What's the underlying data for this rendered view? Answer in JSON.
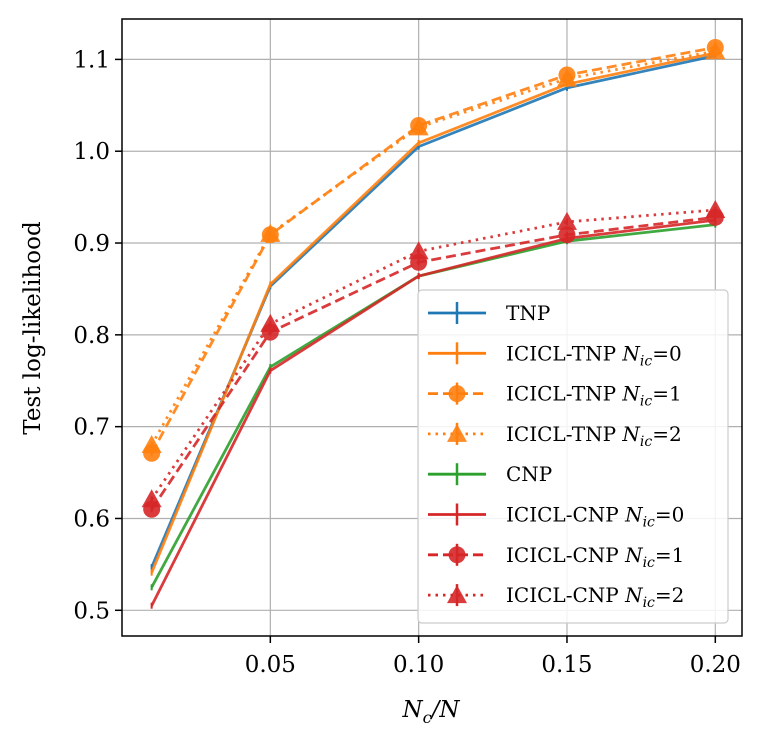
{
  "chart_data": {
    "type": "line",
    "title": "",
    "xlabel_main": "N",
    "xlabel_sub": "c",
    "xlabel_tail": "/N",
    "ylabel": "Test log-likelihood",
    "xlim": [
      0.0,
      0.209
    ],
    "ylim": [
      0.472,
      1.144
    ],
    "xticks": [
      0.05,
      0.1,
      0.15,
      0.2
    ],
    "xtick_labels": [
      "0.05",
      "0.10",
      "0.15",
      "0.20"
    ],
    "yticks": [
      0.5,
      0.6,
      0.7,
      0.8,
      0.9,
      1.0,
      1.1
    ],
    "ytick_labels": [
      "0.5",
      "0.6",
      "0.7",
      "0.8",
      "0.9",
      "1.0",
      "1.1"
    ],
    "grid": true,
    "legend_position": "bottom-right",
    "x": [
      0.01,
      0.05,
      0.1,
      0.15,
      0.2
    ],
    "series": [
      {
        "name": "TNP",
        "label_main": "TNP",
        "label_var": "",
        "label_sub": "",
        "label_tail": "",
        "color": "#1f77b4",
        "dash": "solid",
        "marker": "none",
        "values": [
          0.547,
          0.853,
          1.005,
          1.069,
          1.104
        ]
      },
      {
        "name": "ICICL-TNP Nic=0",
        "label_main": "ICICL-TNP ",
        "label_var": "N",
        "label_sub": "ic",
        "label_tail": "=0",
        "color": "#ff7f0e",
        "dash": "solid",
        "marker": "none",
        "values": [
          0.541,
          0.855,
          1.009,
          1.073,
          1.107
        ]
      },
      {
        "name": "ICICL-TNP Nic=1",
        "label_main": "ICICL-TNP ",
        "label_var": "N",
        "label_sub": "ic",
        "label_tail": "=1",
        "color": "#ff7f0e",
        "dash": "dashed",
        "marker": "circle",
        "values": [
          0.671,
          0.909,
          1.028,
          1.083,
          1.113
        ]
      },
      {
        "name": "ICICL-TNP Nic=2",
        "label_main": "ICICL-TNP ",
        "label_var": "N",
        "label_sub": "ic",
        "label_tail": "=2",
        "color": "#ff7f0e",
        "dash": "dotted",
        "marker": "triangle",
        "values": [
          0.68,
          0.91,
          1.026,
          1.079,
          1.109
        ]
      },
      {
        "name": "CNP",
        "label_main": "CNP",
        "label_var": "",
        "label_sub": "",
        "label_tail": "",
        "color": "#2ca02c",
        "dash": "solid",
        "marker": "none",
        "values": [
          0.525,
          0.765,
          0.864,
          0.902,
          0.92
        ]
      },
      {
        "name": "ICICL-CNP Nic=0",
        "label_main": "ICICL-CNP ",
        "label_var": "N",
        "label_sub": "ic",
        "label_tail": "=0",
        "color": "#d62728",
        "dash": "solid",
        "marker": "none",
        "values": [
          0.505,
          0.761,
          0.864,
          0.905,
          0.925
        ]
      },
      {
        "name": "ICICL-CNP Nic=1",
        "label_main": "ICICL-CNP ",
        "label_var": "N",
        "label_sub": "ic",
        "label_tail": "=1",
        "color": "#d62728",
        "dash": "dashed",
        "marker": "circle",
        "values": [
          0.61,
          0.803,
          0.879,
          0.909,
          0.928
        ]
      },
      {
        "name": "ICICL-CNP Nic=2",
        "label_main": "ICICL-CNP ",
        "label_var": "N",
        "label_sub": "ic",
        "label_tail": "=2",
        "color": "#d62728",
        "dash": "dotted",
        "marker": "triangle",
        "values": [
          0.621,
          0.812,
          0.891,
          0.923,
          0.936
        ]
      }
    ]
  }
}
